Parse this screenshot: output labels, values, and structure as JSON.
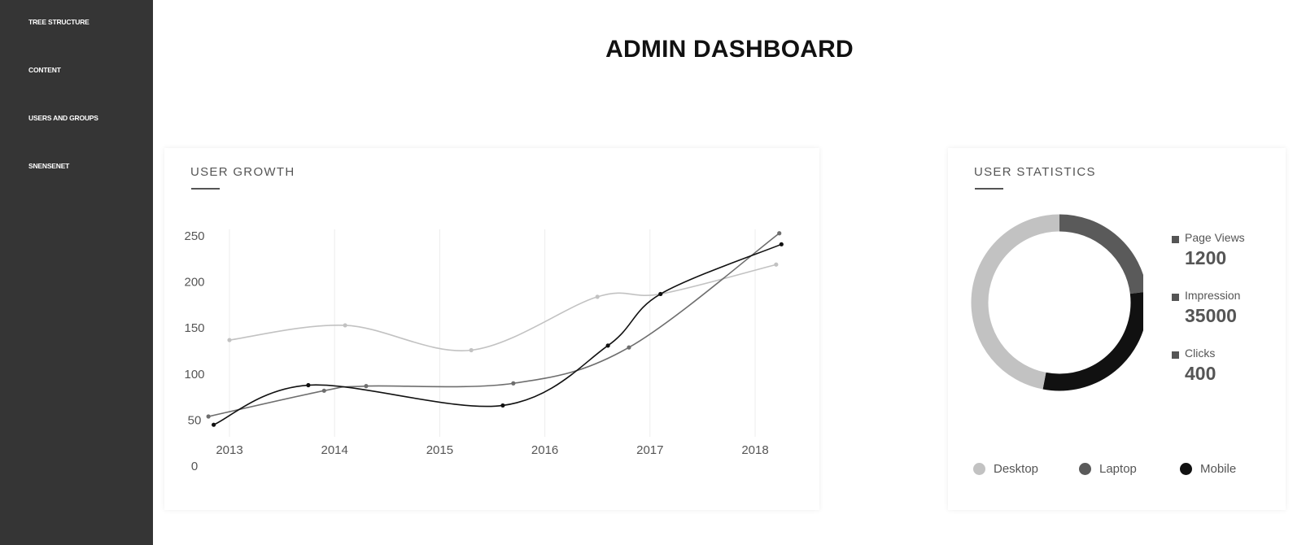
{
  "sidebar": {
    "items": [
      {
        "label": "TREE STRUCTURE"
      },
      {
        "label": "CONTENT"
      },
      {
        "label": "USERS AND GROUPS"
      },
      {
        "label": "SNENSENET"
      }
    ]
  },
  "page": {
    "title": "ADMIN DASHBOARD"
  },
  "user_growth": {
    "title": "USER GROWTH"
  },
  "user_statistics": {
    "title": "USER STATISTICS",
    "stats": [
      {
        "label": "Page Views",
        "value": "1200"
      },
      {
        "label": "Impression",
        "value": "35000"
      },
      {
        "label": "Clicks",
        "value": "400"
      }
    ],
    "legend": [
      {
        "label": "Desktop",
        "color": "#c2c2c2"
      },
      {
        "label": "Laptop",
        "color": "#5a5a5a"
      },
      {
        "label": "Mobile",
        "color": "#111111"
      }
    ]
  },
  "chart_data": [
    {
      "type": "line",
      "title": "USER GROWTH",
      "x_ticks": [
        "2013",
        "2014",
        "2015",
        "2016",
        "2017",
        "2018"
      ],
      "y_ticks": [
        "0",
        "50",
        "100",
        "150",
        "200",
        "250"
      ],
      "ylim": [
        0,
        250
      ],
      "grid": "vertical",
      "series": [
        {
          "color": "#c2c2c2",
          "x": [
            2013.0,
            2014.1,
            2015.3,
            2016.5,
            2017.1,
            2018.2
          ],
          "y": [
            136,
            152,
            125,
            183,
            186,
            218
          ]
        },
        {
          "color": "#6e6e6e",
          "x": [
            2012.8,
            2013.9,
            2014.3,
            2015.7,
            2016.8,
            2018.23
          ],
          "y": [
            53,
            81,
            86,
            89,
            128,
            252
          ]
        },
        {
          "color": "#111111",
          "x": [
            2012.85,
            2013.75,
            2015.6,
            2016.6,
            2017.1,
            2018.25
          ],
          "y": [
            44,
            87,
            65,
            130,
            186,
            240
          ]
        }
      ]
    },
    {
      "type": "pie",
      "title": "USER STATISTICS",
      "categories": [
        "Desktop",
        "Laptop",
        "Mobile"
      ],
      "values": [
        47,
        23,
        30
      ],
      "colors": [
        "#c2c2c2",
        "#5a5a5a",
        "#111111"
      ],
      "style": "donut"
    }
  ]
}
